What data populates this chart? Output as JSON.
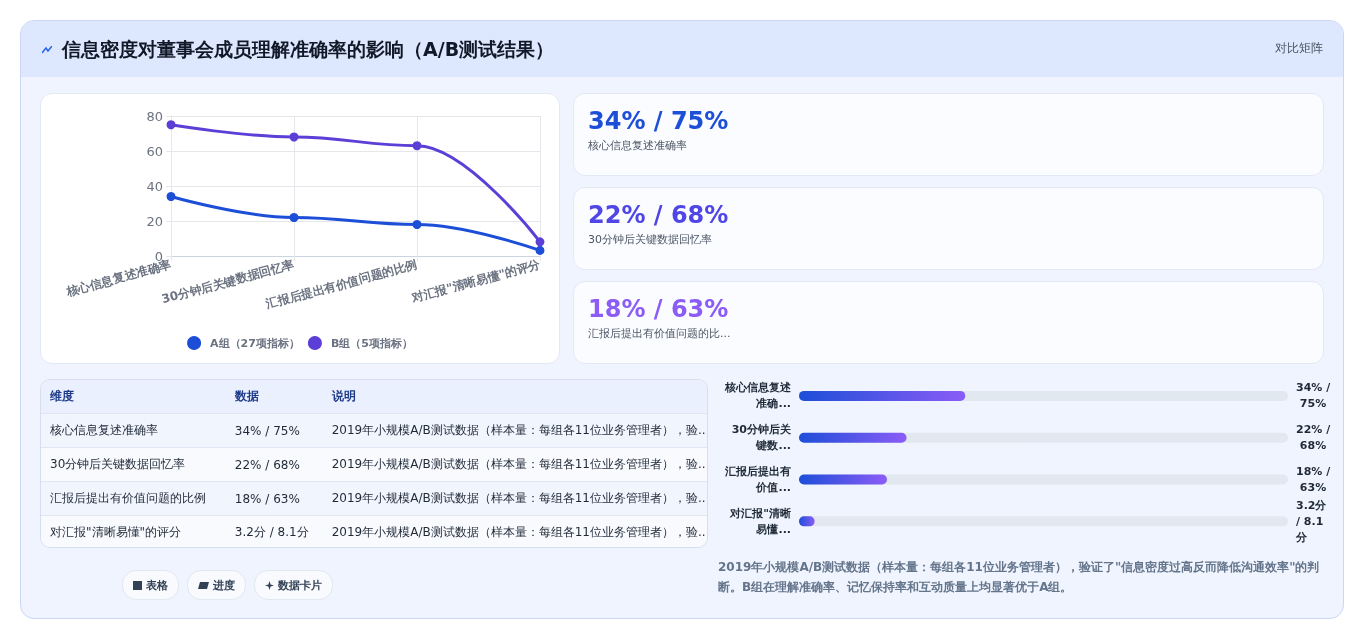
{
  "chart_data": [
    {
      "type": "line",
      "title": "信息密度对董事会成员理解准确率的影响（A/B测试结果）",
      "categories": [
        "核心信息复述准确率",
        "30分钟后关键数据回忆率",
        "汇报后提出有价值问题的比例",
        "对汇报\"清晰易懂\"的评分"
      ],
      "series": [
        {
          "name": "A组（27项指标）",
          "color": "#1d4ed8",
          "values": [
            34,
            22,
            18,
            3.2
          ]
        },
        {
          "name": "B组（5项指标）",
          "color": "#5b3fd6",
          "values": [
            75,
            68,
            63,
            8.1
          ]
        }
      ],
      "ylim": [
        0,
        80
      ],
      "yticks": [
        0,
        20,
        40,
        60,
        80
      ],
      "grid": true,
      "legend": "bottom",
      "marker": "circle",
      "annotations": [
        "对比矩阵",
        "表格",
        "进度",
        "数据卡片"
      ]
    },
    {
      "type": "other",
      "annotations": [
        "34% / 75%",
        "核心信息复述准确率",
        "22% / 68%",
        "30分钟后关键数据回忆率",
        "18% / 63%",
        "汇报后提出有价值问题的比..."
      ]
    },
    {
      "type": "other",
      "annotations": [
        "维度",
        "数据",
        "说明",
        "核心信息复述准确率",
        "34% / 75%",
        "2019年小规模A/B测试数据（样本量：每组各11位业务管理者），验...",
        "30分钟后关键数据回忆率",
        "22% / 68%",
        "2019年小规模A/B测试数据（样本量：每组各11位业务管理者），验...",
        "汇报后提出有价值问题的比例",
        "18% / 63%",
        "2019年小规模A/B测试数据（样本量：每组各11位业务管理者），验...",
        "对汇报\"清晰易懂\"的评分",
        "3.2分 / 8.1分",
        "2019年小规模A/B测试数据（样本量：每组各11位业务管理者），验..."
      ]
    },
    {
      "type": "bar",
      "orientation": "horizontal",
      "xlim": [
        0,
        100
      ],
      "tick_labels": "y",
      "categories": [
        "核心信息复述准确...",
        "30分钟后关键数...",
        "汇报后提出有价值...",
        "对汇报\"清晰易懂..."
      ],
      "values": [
        34,
        22,
        18,
        3.2
      ],
      "color": "#8b5cf6",
      "value_labels": [
        "34% / 75%",
        "22% / 68%",
        "18% / 63%",
        "3.2分 / 8.1分"
      ],
      "annotations": [
        "2019年小规模A/B测试数据（样本量：每组各11位业务管理者），验证了\"信息密度过高反而降低沟通效率\"的判断。B组在理解准确率、记忆保持率和互动质量上均显著优于A组。"
      ]
    }
  ]
}
